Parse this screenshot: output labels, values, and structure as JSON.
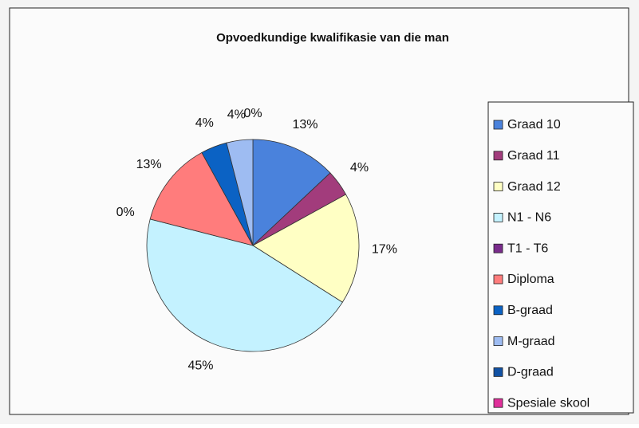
{
  "chart_data": {
    "type": "pie",
    "title": "Opvoedkundige kwalifikasie van die man",
    "categories": [
      "Graad 10",
      "Graad 11",
      "Graad 12",
      "N1 - N6",
      "T1 - T6",
      "Diploma",
      "B-graad",
      "M-graad",
      "D-graad",
      "Spesiale skool"
    ],
    "values": [
      13,
      4,
      17,
      45,
      0,
      13,
      4,
      4,
      0,
      null
    ],
    "value_labels": [
      "13%",
      "4%",
      "17%",
      "45%",
      "0%",
      "13%",
      "4%",
      "4%",
      "0%",
      null
    ],
    "colors": [
      "#4a82dc",
      "#a23c7c",
      "#ffffc4",
      "#c4f2ff",
      "#7a2c8c",
      "#ff7c7c",
      "#0b62c4",
      "#9ebcf2",
      "#1252a4",
      "#e0309a"
    ],
    "legend": "right"
  }
}
